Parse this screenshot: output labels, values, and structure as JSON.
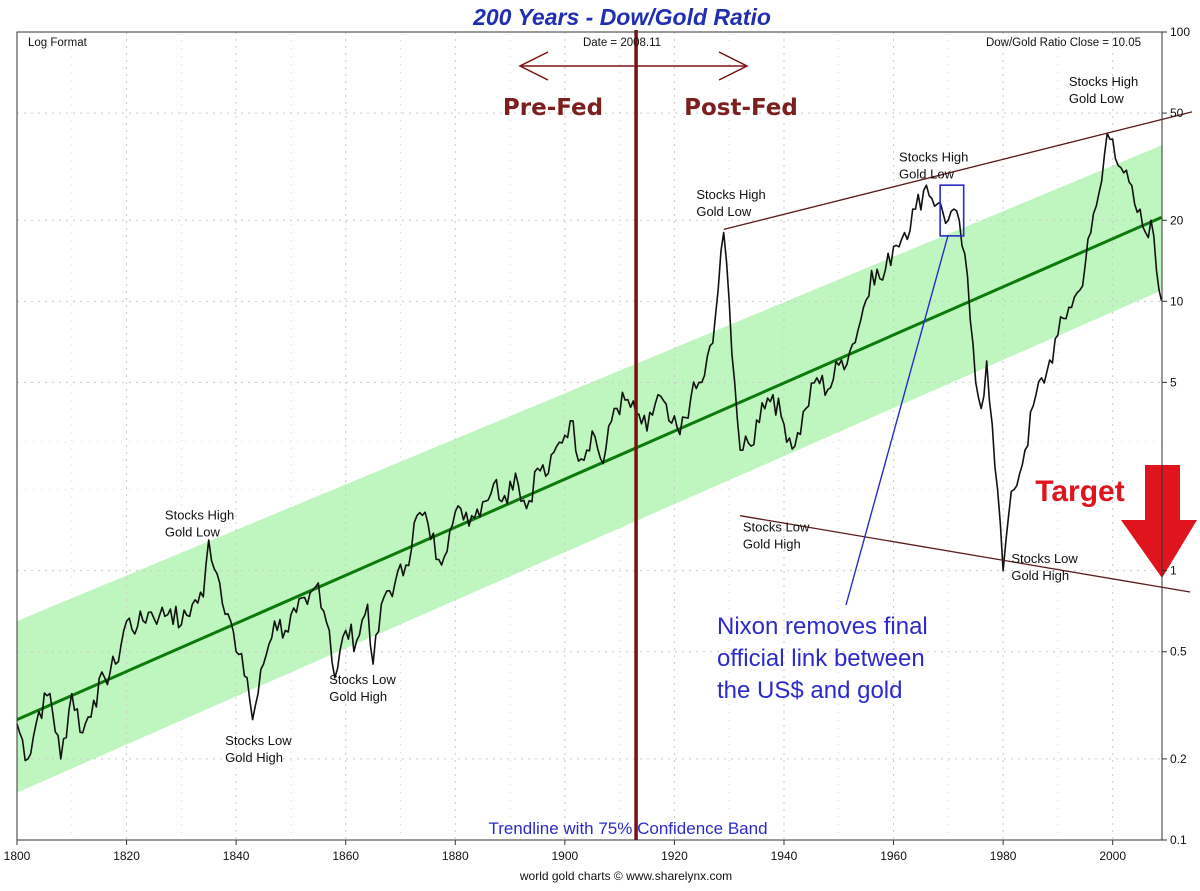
{
  "chart_data": {
    "type": "line",
    "title": "200 Years - Dow/Gold Ratio",
    "scale_label": "Log Format",
    "date_label": "Date = 2008.11",
    "close_label": "Dow/Gold Ratio Close = 10.05",
    "credit": "world gold charts © www.sharelynx.com",
    "band_label": "Trendline with 75% Confidence Band",
    "y_scale": "log",
    "xlim": [
      1800,
      2009
    ],
    "ylim": [
      0.1,
      100
    ],
    "x_ticks": [
      "1800",
      "1820",
      "1840",
      "1860",
      "1880",
      "1900",
      "1920",
      "1940",
      "1960",
      "1980",
      "2000"
    ],
    "y_ticks": [
      {
        "value": 100,
        "label": "100"
      },
      {
        "value": 50,
        "label": "50"
      },
      {
        "value": 20,
        "label": "20"
      },
      {
        "value": 10,
        "label": "10"
      },
      {
        "value": 5,
        "label": "5"
      },
      {
        "value": 1,
        "label": "1"
      },
      {
        "value": 0.5,
        "label": "0.5"
      },
      {
        "value": 0.2,
        "label": "0.2"
      },
      {
        "value": 0.1,
        "label": "0.1"
      }
    ],
    "grid": true,
    "series": [
      {
        "name": "Dow/Gold Ratio",
        "points": [
          [
            1800,
            0.27
          ],
          [
            1802,
            0.2
          ],
          [
            1804,
            0.3
          ],
          [
            1806,
            0.35
          ],
          [
            1808,
            0.2
          ],
          [
            1810,
            0.35
          ],
          [
            1812,
            0.25
          ],
          [
            1814,
            0.33
          ],
          [
            1816,
            0.4
          ],
          [
            1818,
            0.45
          ],
          [
            1820,
            0.65
          ],
          [
            1822,
            0.62
          ],
          [
            1824,
            0.7
          ],
          [
            1826,
            0.68
          ],
          [
            1828,
            0.72
          ],
          [
            1830,
            0.63
          ],
          [
            1832,
            0.75
          ],
          [
            1834,
            0.8
          ],
          [
            1835,
            1.3
          ],
          [
            1837,
            0.9
          ],
          [
            1839,
            0.65
          ],
          [
            1840,
            0.5
          ],
          [
            1842,
            0.4
          ],
          [
            1843,
            0.28
          ],
          [
            1845,
            0.45
          ],
          [
            1847,
            0.65
          ],
          [
            1849,
            0.6
          ],
          [
            1851,
            0.7
          ],
          [
            1853,
            0.75
          ],
          [
            1855,
            0.9
          ],
          [
            1857,
            0.6
          ],
          [
            1858,
            0.4
          ],
          [
            1860,
            0.6
          ],
          [
            1862,
            0.55
          ],
          [
            1864,
            0.75
          ],
          [
            1865,
            0.45
          ],
          [
            1867,
            0.8
          ],
          [
            1869,
            0.9
          ],
          [
            1871,
            1.05
          ],
          [
            1873,
            1.6
          ],
          [
            1875,
            1.5
          ],
          [
            1877,
            1.1
          ],
          [
            1879,
            1.4
          ],
          [
            1881,
            1.7
          ],
          [
            1883,
            1.6
          ],
          [
            1885,
            1.8
          ],
          [
            1887,
            2.1
          ],
          [
            1889,
            1.9
          ],
          [
            1891,
            2.3
          ],
          [
            1893,
            1.7
          ],
          [
            1895,
            2.4
          ],
          [
            1897,
            2.3
          ],
          [
            1899,
            3.0
          ],
          [
            1901,
            3.6
          ],
          [
            1903,
            2.6
          ],
          [
            1905,
            3.3
          ],
          [
            1907,
            2.5
          ],
          [
            1909,
            4.0
          ],
          [
            1911,
            4.3
          ],
          [
            1913,
            3.8
          ],
          [
            1915,
            3.3
          ],
          [
            1917,
            4.5
          ],
          [
            1919,
            3.6
          ],
          [
            1921,
            3.2
          ],
          [
            1923,
            4.4
          ],
          [
            1925,
            5.0
          ],
          [
            1927,
            7.0
          ],
          [
            1929,
            18.0
          ],
          [
            1930,
            10.0
          ],
          [
            1931,
            5.0
          ],
          [
            1932,
            2.8
          ],
          [
            1934,
            2.9
          ],
          [
            1936,
            4.2
          ],
          [
            1938,
            4.5
          ],
          [
            1940,
            3.5
          ],
          [
            1942,
            2.9
          ],
          [
            1944,
            4.0
          ],
          [
            1946,
            5.2
          ],
          [
            1948,
            4.7
          ],
          [
            1950,
            5.8
          ],
          [
            1952,
            6.5
          ],
          [
            1954,
            8.5
          ],
          [
            1956,
            13.0
          ],
          [
            1958,
            12.0
          ],
          [
            1960,
            16.0
          ],
          [
            1962,
            18.0
          ],
          [
            1964,
            22.0
          ],
          [
            1966,
            27.0
          ],
          [
            1968,
            23.0
          ],
          [
            1970,
            20.0
          ],
          [
            1971,
            22.0
          ],
          [
            1973,
            15.0
          ],
          [
            1974,
            8.5
          ],
          [
            1975,
            5.0
          ],
          [
            1976,
            4.0
          ],
          [
            1977,
            6.0
          ],
          [
            1978,
            3.5
          ],
          [
            1979,
            2.0
          ],
          [
            1980,
            1.0
          ],
          [
            1981,
            1.6
          ],
          [
            1982,
            2.0
          ],
          [
            1984,
            2.8
          ],
          [
            1986,
            4.5
          ],
          [
            1988,
            5.5
          ],
          [
            1990,
            7.5
          ],
          [
            1992,
            9.5
          ],
          [
            1994,
            11.0
          ],
          [
            1996,
            18.0
          ],
          [
            1998,
            28.0
          ],
          [
            1999,
            42.0
          ],
          [
            2000,
            40.0
          ],
          [
            2002,
            30.0
          ],
          [
            2004,
            23.0
          ],
          [
            2006,
            18.0
          ],
          [
            2007,
            20.0
          ],
          [
            2008,
            13.0
          ],
          [
            2008.9,
            10.05
          ]
        ]
      }
    ],
    "trendline": {
      "start": [
        1800,
        0.28
      ],
      "end": [
        2008.9,
        20.5
      ]
    },
    "confidence_band": {
      "upper_start": 0.65,
      "upper_end": 38,
      "lower_start": 0.15,
      "lower_end": 11
    },
    "divider_year": 1913,
    "divider_labels": {
      "left": "Pre-Fed",
      "right": "Post-Fed"
    },
    "resistance_line": {
      "points": [
        [
          1929,
          18.5
        ],
        [
          2009,
          48
        ]
      ]
    },
    "support_line": {
      "points": [
        [
          1932,
          1.6
        ],
        [
          2009,
          0.9
        ]
      ]
    },
    "annotations": [
      {
        "lines": [
          "Stocks High",
          "Gold Low"
        ],
        "year": 1827,
        "value": 1.55
      },
      {
        "lines": [
          "Stocks Low",
          "Gold High"
        ],
        "year": 1838,
        "value": 0.225
      },
      {
        "lines": [
          "Stocks Low",
          "Gold High"
        ],
        "year": 1857,
        "value": 0.38
      },
      {
        "lines": [
          "Stocks High",
          "Gold Low"
        ],
        "year": 1924,
        "value": 24
      },
      {
        "lines": [
          "Stocks Low",
          "Gold High"
        ],
        "year": 1932.5,
        "value": 1.4
      },
      {
        "lines": [
          "Stocks High",
          "Gold Low"
        ],
        "year": 1961,
        "value": 33
      },
      {
        "lines": [
          "Stocks Low",
          "Gold High"
        ],
        "year": 1981.5,
        "value": 1.07
      },
      {
        "lines": [
          "Stocks High",
          "Gold Low"
        ],
        "year": 1992,
        "value": 63
      }
    ],
    "nixon_note": {
      "lines": [
        "Nixon removes final",
        "official link between",
        "the US$ and gold"
      ]
    },
    "target_label": "Target"
  },
  "colors": {
    "series": "#111111",
    "trendline": "#0b7a0b",
    "band": "#bff5bf",
    "divider": "#7a1010",
    "channel": "#5a1a1a",
    "title": "#1f2fb0",
    "nixon": "#2b2bc9",
    "target": "#e0141c"
  }
}
